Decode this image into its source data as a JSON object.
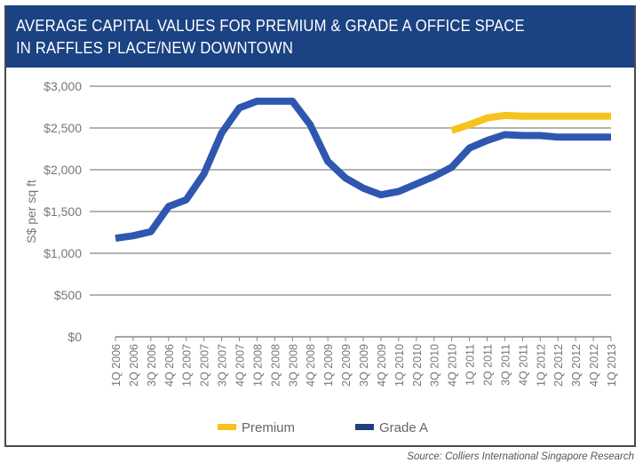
{
  "header": {
    "title_line1": "AVERAGE CAPITAL VALUES FOR PREMIUM & GRADE A OFFICE SPACE",
    "title_line2": "IN RAFFLES PLACE/NEW DOWNTOWN"
  },
  "source": "Source: Colliers International Singapore Research",
  "colors": {
    "header_bg": "#1b4282",
    "premium": "#f7c21b",
    "grade_a": "#2f57b0",
    "grade_a_legend": "#1f3f7f",
    "grid": "#9a9a9a"
  },
  "chart_data": {
    "type": "line",
    "title": "AVERAGE CAPITAL VALUES FOR PREMIUM & GRADE A OFFICE SPACE IN RAFFLES PLACE/NEW DOWNTOWN",
    "xlabel": "",
    "ylabel": "S$ per sq ft",
    "ylim": [
      0,
      3000
    ],
    "yticks": [
      0,
      500,
      1000,
      1500,
      2000,
      2500,
      3000
    ],
    "ytick_labels": [
      "$0",
      "$500",
      "$1,000",
      "$1,500",
      "$2,000",
      "$2,500",
      "$3,000"
    ],
    "grid": true,
    "legend_position": "bottom",
    "categories": [
      "1Q 2006",
      "2Q 2006",
      "3Q 2006",
      "4Q 2006",
      "1Q 2007",
      "2Q 2007",
      "3Q 2007",
      "4Q 2007",
      "1Q 2008",
      "2Q 2008",
      "3Q 2008",
      "4Q 2008",
      "1Q 2009",
      "2Q 2009",
      "3Q 2009",
      "4Q 2009",
      "1Q 2010",
      "2Q 2010",
      "3Q 2010",
      "4Q 2010",
      "1Q 2011",
      "2Q 2011",
      "3Q 2011",
      "4Q 2011",
      "1Q 2012",
      "2Q 2012",
      "3Q 2012",
      "4Q 2012",
      "1Q 2013"
    ],
    "series": [
      {
        "name": "Premium",
        "color": "#f7c21b",
        "values": [
          null,
          null,
          null,
          null,
          null,
          null,
          null,
          null,
          null,
          null,
          null,
          null,
          null,
          null,
          null,
          null,
          null,
          null,
          null,
          2470,
          2540,
          2620,
          2650,
          2640,
          2640,
          2640,
          2640,
          2640,
          2640
        ]
      },
      {
        "name": "Grade A",
        "color": "#2f57b0",
        "values": [
          1180,
          1210,
          1260,
          1560,
          1640,
          1950,
          2440,
          2740,
          2820,
          2820,
          2820,
          2540,
          2100,
          1900,
          1780,
          1700,
          1740,
          1830,
          1920,
          2030,
          2260,
          2350,
          2420,
          2410,
          2410,
          2390,
          2390,
          2390,
          2390
        ]
      }
    ]
  }
}
